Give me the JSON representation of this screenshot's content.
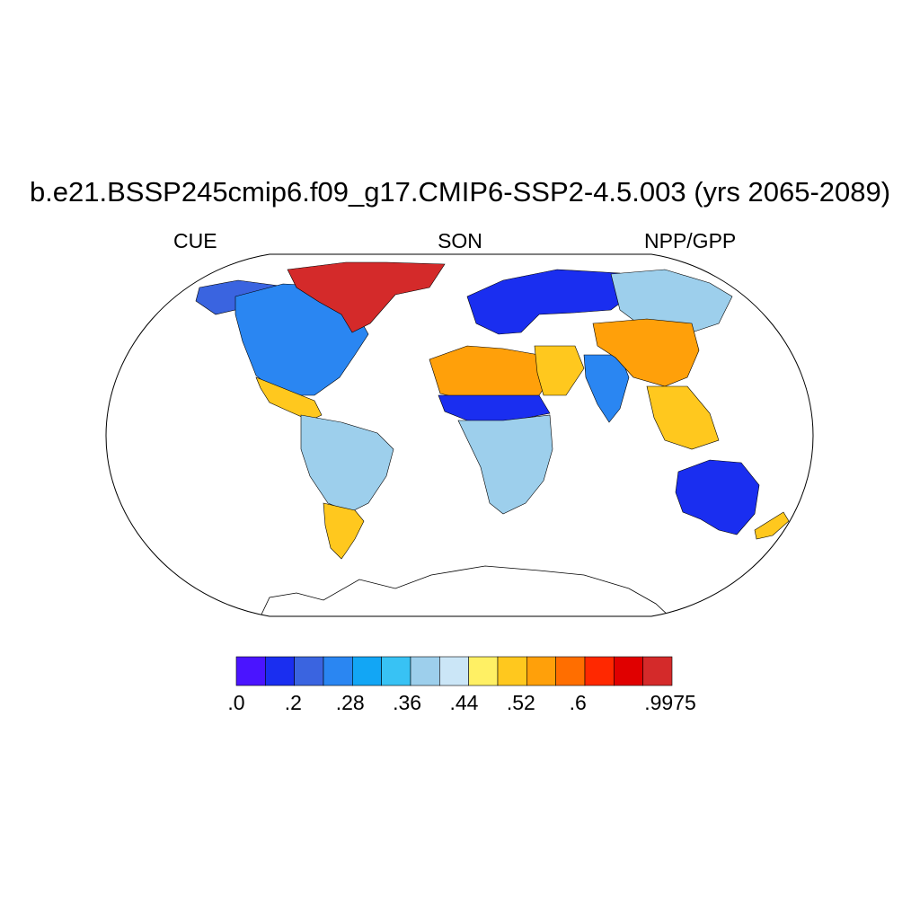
{
  "title": "b.e21.BSSP245cmip6.f09_g17.CMIP6-SSP2-4.5.003 (yrs 2065-2089)",
  "left_label": "CUE",
  "center_label": "SON",
  "right_label": "NPP/GPP",
  "colorbar": {
    "colors": [
      "#4a14ff",
      "#1a2ef0",
      "#3a64e0",
      "#2a86f2",
      "#12a6f5",
      "#38c2f4",
      "#9dcfec",
      "#cbe6f7",
      "#fff064",
      "#ffc81e",
      "#ffa00a",
      "#ff6e00",
      "#ff2800",
      "#e00000",
      "#d42a2a"
    ],
    "labels": [
      ".0",
      ".2",
      ".28",
      ".36",
      ".44",
      ".52",
      ".6",
      ".9975"
    ]
  },
  "regions": [
    {
      "name": "alaska",
      "color": "#3a64e0"
    },
    {
      "name": "north-america",
      "color": "#2a86f2"
    },
    {
      "name": "greenland-arctic-canada",
      "color": "#d42a2a"
    },
    {
      "name": "mexico-central-america",
      "color": "#ffc81e"
    },
    {
      "name": "south-america-amazon",
      "color": "#9dcfec"
    },
    {
      "name": "south-america-south",
      "color": "#ffc81e"
    },
    {
      "name": "northern-europe-russia",
      "color": "#1a2ef0"
    },
    {
      "name": "siberia",
      "color": "#9dcfec"
    },
    {
      "name": "north-africa-sahara",
      "color": "#ffa00a"
    },
    {
      "name": "sahel",
      "color": "#1a2ef0"
    },
    {
      "name": "africa-south",
      "color": "#9dcfec"
    },
    {
      "name": "middle-east",
      "color": "#ffc81e"
    },
    {
      "name": "india",
      "color": "#2a86f2"
    },
    {
      "name": "china",
      "color": "#ffa00a"
    },
    {
      "name": "southeast-asia",
      "color": "#ffc81e"
    },
    {
      "name": "australia",
      "color": "#1a2ef0"
    },
    {
      "name": "new-zealand",
      "color": "#ffc81e"
    }
  ]
}
